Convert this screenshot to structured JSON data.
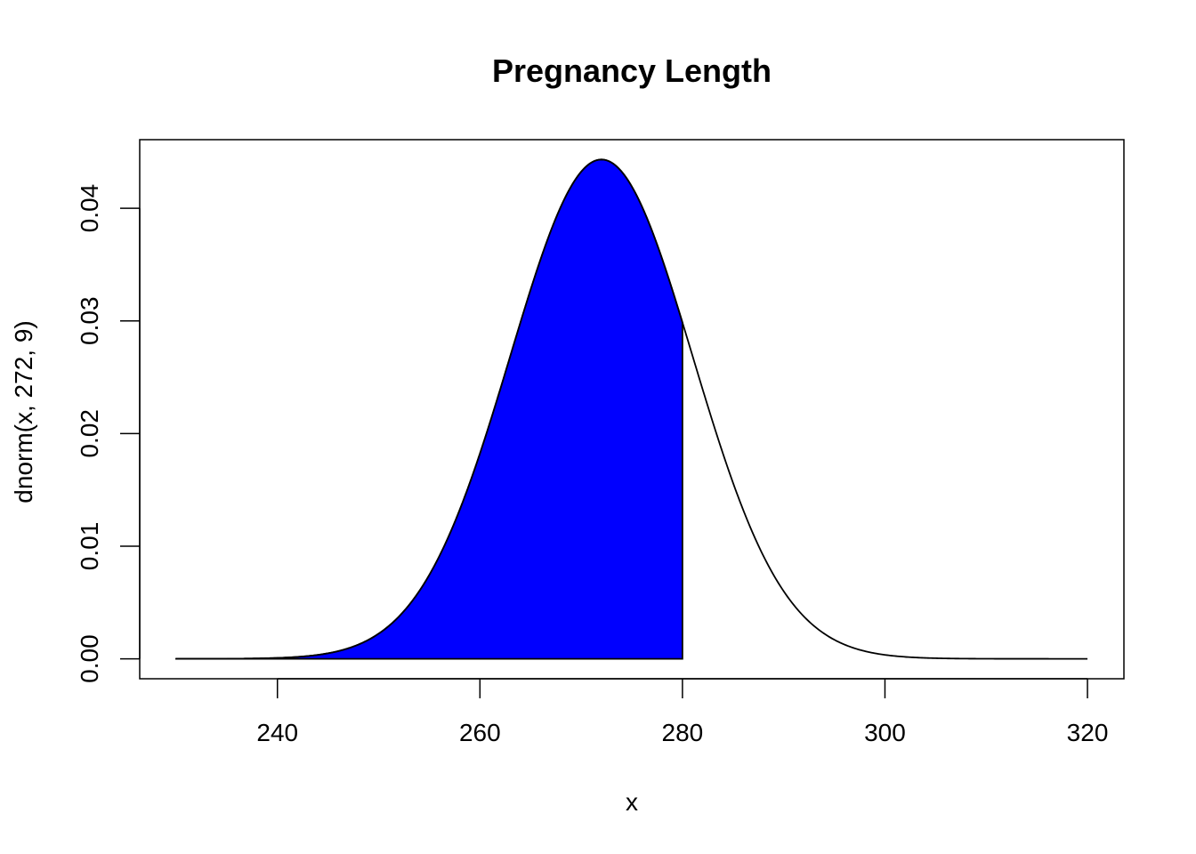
{
  "chart_data": {
    "type": "area",
    "title": "Pregnancy Length",
    "xlabel": "x",
    "ylabel": "dnorm(x, 272, 9)",
    "distribution": {
      "family": "normal",
      "mean": 272,
      "sd": 9
    },
    "curve": {
      "x_from": 230,
      "x_to": 320,
      "color": "#000000"
    },
    "shaded_region": {
      "x_from": 230,
      "x_to": 280,
      "fill": "#0000ff"
    },
    "xlim": [
      226.4,
      323.6
    ],
    "ylim": [
      -0.00177,
      0.04609
    ],
    "x_ticks": [
      240,
      260,
      280,
      300,
      320
    ],
    "x_tick_labels": [
      "240",
      "260",
      "280",
      "300",
      "320"
    ],
    "y_ticks": [
      0.0,
      0.01,
      0.02,
      0.03,
      0.04
    ],
    "y_tick_labels": [
      "0.00",
      "0.01",
      "0.02",
      "0.03",
      "0.04"
    ],
    "grid": false,
    "legend": "none"
  }
}
